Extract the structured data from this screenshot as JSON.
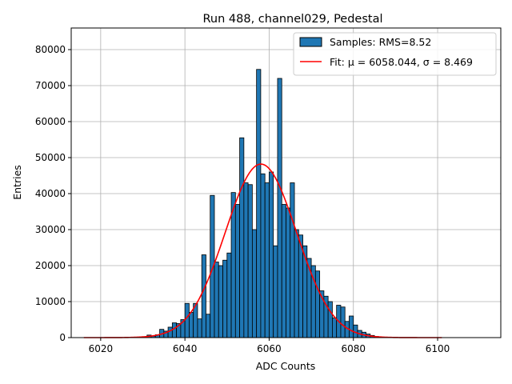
{
  "chart_data": {
    "type": "bar",
    "title": "Run 488, channel029, Pedestal",
    "xlabel": "ADC Counts",
    "ylabel": "Entries",
    "xlim": [
      6013,
      6115
    ],
    "ylim": [
      0,
      86000
    ],
    "grid": true,
    "legend_position": "top-right",
    "x_ticks": [
      6020,
      6040,
      6060,
      6080,
      6100
    ],
    "y_ticks": [
      0,
      10000,
      20000,
      30000,
      40000,
      50000,
      60000,
      70000,
      80000
    ],
    "colors": {
      "bars": "#1f77b4",
      "bar_edge": "#000000",
      "fit": "#ff0000",
      "grid": "#b0b0b0"
    },
    "bin_width": 1,
    "series": [
      {
        "name": "Samples: RMS=8.52",
        "bin_starts": [
          6031,
          6032,
          6033,
          6034,
          6035,
          6036,
          6037,
          6038,
          6039,
          6040,
          6041,
          6042,
          6043,
          6044,
          6045,
          6046,
          6047,
          6048,
          6049,
          6050,
          6051,
          6052,
          6053,
          6054,
          6055,
          6056,
          6057,
          6058,
          6059,
          6060,
          6061,
          6062,
          6063,
          6064,
          6065,
          6066,
          6067,
          6068,
          6069,
          6070,
          6071,
          6072,
          6073,
          6074,
          6075,
          6076,
          6077,
          6078,
          6079,
          6080,
          6081,
          6082,
          6083,
          6084,
          6085
        ],
        "values": [
          700,
          400,
          800,
          2300,
          1800,
          2900,
          4100,
          3900,
          5000,
          9500,
          7000,
          9500,
          5200,
          23000,
          6500,
          39500,
          21000,
          20000,
          21500,
          23500,
          40300,
          37000,
          55500,
          43000,
          42500,
          30000,
          74500,
          45500,
          43000,
          46000,
          25500,
          72000,
          37000,
          36000,
          43000,
          30000,
          28500,
          25500,
          22000,
          20000,
          18500,
          13000,
          11500,
          10000,
          5500,
          9000,
          8500,
          4500,
          6000,
          3500,
          2000,
          1500,
          1000,
          600,
          300
        ]
      },
      {
        "name": "Fit: μ = 6058.044, σ = 8.469",
        "type": "line",
        "mu": 6058.044,
        "sigma": 8.469,
        "amplitude": 48200,
        "x_range": [
          6016,
          6101
        ]
      }
    ]
  }
}
